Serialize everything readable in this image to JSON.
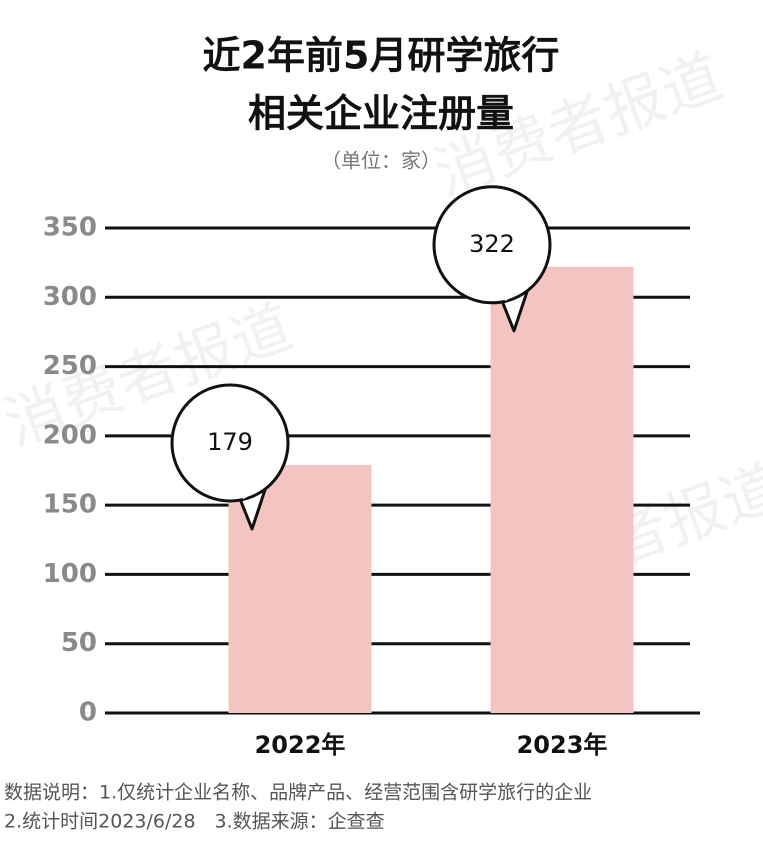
{
  "chart_data": {
    "type": "bar",
    "title": [
      "近2年前5月研学旅行",
      "相关企业注册量"
    ],
    "subtitle": "（单位：家）",
    "watermark": "消费者报道",
    "categories": [
      "2022年",
      "2023年"
    ],
    "values": [
      179,
      322
    ],
    "color": "#f4c4c1",
    "ylim": [
      0,
      350
    ],
    "yticks": [
      0,
      50,
      100,
      150,
      200,
      250,
      300,
      350
    ],
    "grid": true,
    "notes": [
      "数据说明：1.仅统计企业名称、品牌产品、经营范围含研学旅行的企业",
      "2.统计时间2023/6/28　3.数据来源：企查查"
    ]
  }
}
